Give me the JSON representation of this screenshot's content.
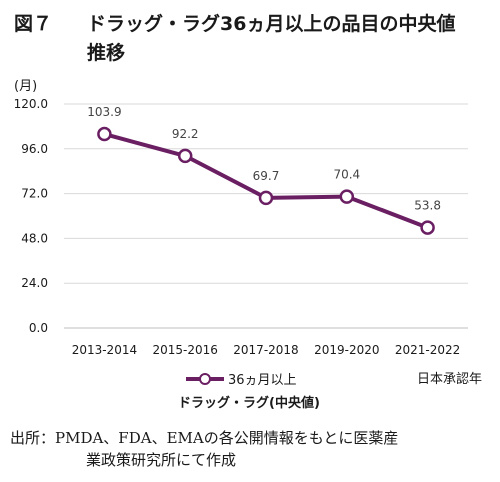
{
  "figure": {
    "label": "図７",
    "title_line1": "ドラッグ・ラグ36ヵ月以上の品目の中央値",
    "title_line2": "推移"
  },
  "chart_data": {
    "type": "line",
    "title": "",
    "ylabel": "(月)",
    "xlabel": "日本承認年",
    "categories": [
      "2013-2014",
      "2015-2016",
      "2017-2018",
      "2019-2020",
      "2021-2022"
    ],
    "series": [
      {
        "name": "36ヵ月以上",
        "values": [
          103.9,
          92.2,
          69.7,
          70.4,
          53.8
        ],
        "color": "#6b1f63"
      }
    ],
    "ylim": [
      0,
      120
    ],
    "yticks": [
      "0.0",
      "24.0",
      "48.0",
      "72.0",
      "96.0",
      "120.0"
    ],
    "data_labels": [
      "103.9",
      "92.2",
      "69.7",
      "70.4",
      "53.8"
    ],
    "grid": "horizontal",
    "legend_position": "bottom",
    "legend_subtitle": "ドラッグ・ラグ(中央値)"
  },
  "source": {
    "line1": "出所：PMDA、FDA、EMAの各公開情報をもとに医薬産",
    "line2": "業政策研究所にて作成"
  }
}
